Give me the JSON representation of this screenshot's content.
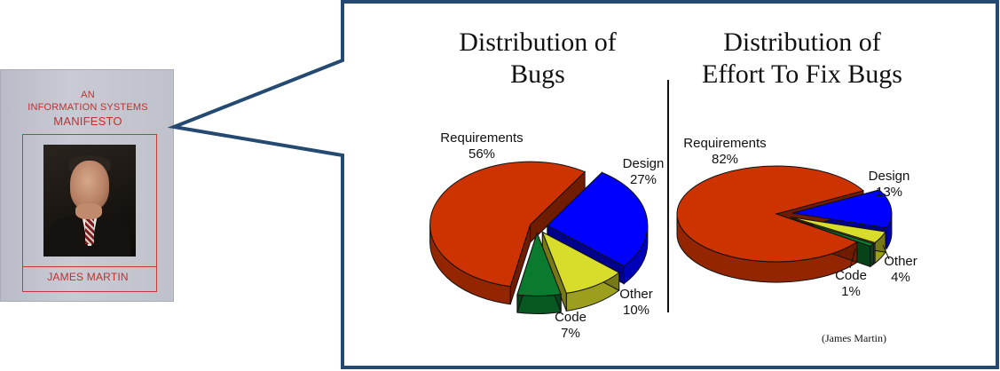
{
  "book": {
    "line1": "AN",
    "line2": "INFORMATION SYSTEMS",
    "line3": "MANIFESTO",
    "author": "JAMES MARTIN"
  },
  "colors": {
    "border": "#254a72",
    "requirements": "#cc3300",
    "design": "#0000ff",
    "code": "#0a7a2e",
    "other": "#d8dc2a"
  },
  "chart_data": [
    {
      "type": "pie",
      "title_line1": "Distribution of",
      "title_line2": "Bugs",
      "series": [
        {
          "name": "Requirements",
          "label": "56%",
          "value": 56
        },
        {
          "name": "Design",
          "label": "27%",
          "value": 27
        },
        {
          "name": "Other",
          "label": "10%",
          "value": 10
        },
        {
          "name": "Code",
          "label": "7%",
          "value": 7
        }
      ]
    },
    {
      "type": "pie",
      "title_line1": "Distribution of",
      "title_line2": "Effort To Fix Bugs",
      "series": [
        {
          "name": "Requirements",
          "label": "82%",
          "value": 82
        },
        {
          "name": "Design",
          "label": "13%",
          "value": 13
        },
        {
          "name": "Other",
          "label": "4%",
          "value": 4
        },
        {
          "name": "Code",
          "label": "1%",
          "value": 1
        }
      ]
    }
  ],
  "credit": "(James Martin)"
}
